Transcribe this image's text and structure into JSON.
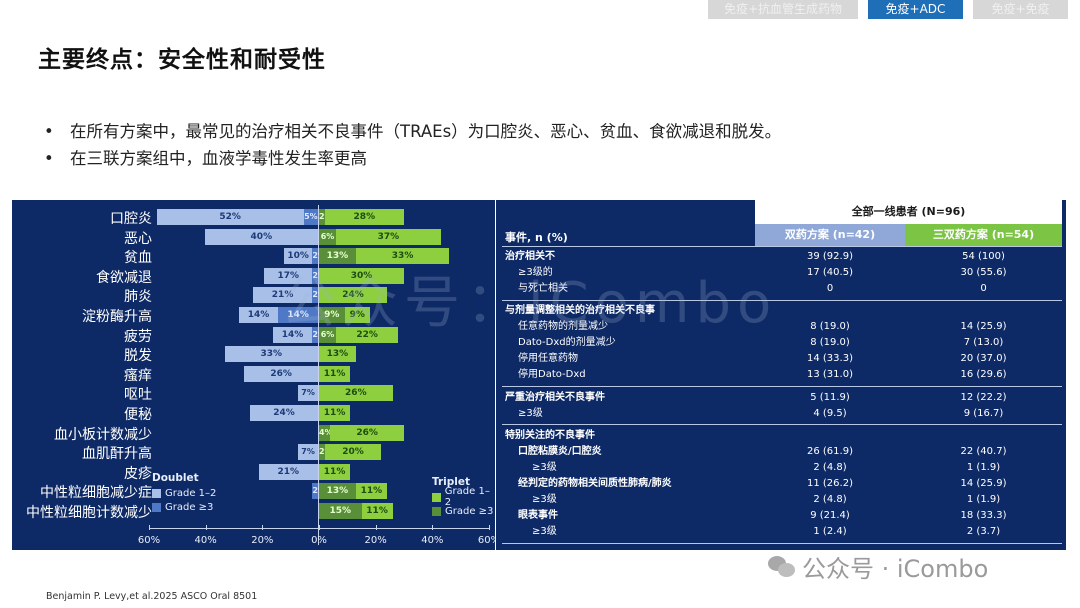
{
  "top_tabs": [
    {
      "label": "免疫+抗血管生成药物",
      "active": false
    },
    {
      "label": "免疫+ADC",
      "active": true
    },
    {
      "label": "免疫+免疫",
      "active": false
    }
  ],
  "page": {
    "title": "主要终点：安全性和耐受性",
    "bullets": [
      "在所有方案中，最常见的治疗相关不良事件（TRAEs）为口腔炎、恶心、贫血、食欲减退和脱发。",
      "在三联方案组中，血液学毒性发生率更高"
    ],
    "footer_ref": "Benjamin P. Levy,et al.2025 ASCO Oral 8501"
  },
  "watermarks": {
    "center": "公众号：iCombo",
    "bottom": "公众号 · iCombo"
  },
  "colors": {
    "panel_bg": "#0e2a66",
    "doublet_grade12": "#a8c0e8",
    "doublet_grade3": "#4f79c6",
    "triplet_grade12": "#8dcf3f",
    "triplet_grade3": "#5a8f3a",
    "tab_active": "#1f6fb8"
  },
  "chart_data": {
    "type": "bar",
    "orientation": "horizontal-diverging",
    "title": "",
    "xlabel": "",
    "ylabel": "",
    "xlim": [
      -60,
      60
    ],
    "x_ticks": [
      "60%",
      "40%",
      "20%",
      "0%",
      "20%",
      "40%",
      "60%"
    ],
    "categories": [
      "口腔炎",
      "恶心",
      "贫血",
      "食欲减退",
      "肺炎",
      "淀粉酶升高",
      "疲劳",
      "脱发",
      "瘙痒",
      "呕吐",
      "便秘",
      "血小板计数减少",
      "血肌酐升高",
      "皮疹",
      "中性粒细胞减少症",
      "中性粒细胞计数减少"
    ],
    "series": [
      {
        "name": "Doublet Grade 1–2",
        "side": "left",
        "values": [
          52,
          40,
          10,
          17,
          21,
          14,
          14,
          33,
          26,
          7,
          24,
          0,
          7,
          21,
          0,
          0
        ]
      },
      {
        "name": "Doublet Grade ≥3",
        "side": "left",
        "values": [
          5,
          0,
          2,
          2,
          2,
          14,
          2,
          0,
          0,
          0,
          0,
          0,
          0,
          0,
          2,
          0
        ]
      },
      {
        "name": "Triplet Grade ≥3",
        "side": "right",
        "values": [
          2,
          6,
          13,
          0,
          0,
          9,
          6,
          0,
          0,
          0,
          0,
          4,
          2,
          0,
          13,
          15
        ]
      },
      {
        "name": "Triplet Grade 1–2",
        "side": "right",
        "values": [
          28,
          37,
          33,
          30,
          24,
          9,
          22,
          13,
          11,
          26,
          11,
          26,
          20,
          11,
          11,
          11
        ]
      }
    ],
    "legend": {
      "doublet": {
        "title": "Doublet",
        "items": [
          "Grade 1–2",
          "Grade ≥3"
        ]
      },
      "triplet": {
        "title": "Triplet",
        "items": [
          "Grade 1–2",
          "Grade ≥3"
        ]
      }
    },
    "grid": false
  },
  "table": {
    "header_all": "全部一线患者 (N=96)",
    "col_label": "事件, n (%)",
    "col_doublet": "双药方案 (n=42)",
    "col_triplet": "三双药方案 (n=54)",
    "rows": [
      {
        "label": "治疗相关不",
        "indent": 0,
        "bold": true,
        "doublet": "39 (92.9)",
        "triplet": "54 (100)"
      },
      {
        "label": "≥3级的",
        "indent": 1,
        "bold": false,
        "doublet": "17 (40.5)",
        "triplet": "30 (55.6)"
      },
      {
        "label": "与死亡相关",
        "indent": 1,
        "bold": false,
        "doublet": "0",
        "triplet": "0"
      },
      {
        "label": "与剂量调整相关的治疗相关不良事",
        "indent": 0,
        "bold": true,
        "doublet": "",
        "triplet": ""
      },
      {
        "label": "任意药物的剂量减少",
        "indent": 1,
        "bold": false,
        "doublet": "8 (19.0)",
        "triplet": "14 (25.9)"
      },
      {
        "label": "Dato-Dxd的剂量减少",
        "indent": 1,
        "bold": false,
        "doublet": "8 (19.0)",
        "triplet": "7 (13.0)"
      },
      {
        "label": "停用任意药物",
        "indent": 1,
        "bold": false,
        "doublet": "14 (33.3)",
        "triplet": "20 (37.0)"
      },
      {
        "label": "停用Dato-Dxd",
        "indent": 1,
        "bold": false,
        "doublet": "13 (31.0)",
        "triplet": "16 (29.6)"
      },
      {
        "label": "严重治疗相关不良事件",
        "indent": 0,
        "bold": true,
        "doublet": "5 (11.9)",
        "triplet": "12 (22.2)"
      },
      {
        "label": "≥3级",
        "indent": 1,
        "bold": false,
        "doublet": "4 (9.5)",
        "triplet": "9 (16.7)"
      },
      {
        "label": "特别关注的不良事件",
        "indent": 0,
        "bold": true,
        "doublet": "",
        "triplet": ""
      },
      {
        "label": "口腔粘膜炎/口腔炎",
        "indent": 1,
        "bold": true,
        "doublet": "26 (61.9)",
        "triplet": "22 (40.7)"
      },
      {
        "label": "≥3级",
        "indent": 2,
        "bold": false,
        "doublet": "2 (4.8)",
        "triplet": "1 (1.9)"
      },
      {
        "label": "经判定的药物相关间质性肺病/肺炎",
        "indent": 1,
        "bold": true,
        "doublet": "11 (26.2)",
        "triplet": "14 (25.9)"
      },
      {
        "label": "≥3级",
        "indent": 2,
        "bold": false,
        "doublet": "2 (4.8)",
        "triplet": "1 (1.9)"
      },
      {
        "label": "眼表事件",
        "indent": 1,
        "bold": true,
        "doublet": "9 (21.4)",
        "triplet": "18 (33.3)"
      },
      {
        "label": "≥3级",
        "indent": 2,
        "bold": false,
        "doublet": "1 (2.4)",
        "triplet": "2 (3.7)"
      }
    ]
  }
}
